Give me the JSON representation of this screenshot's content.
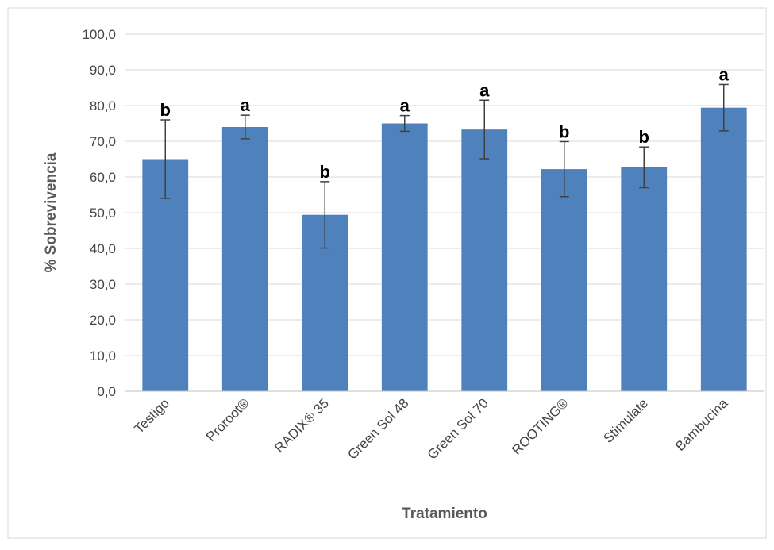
{
  "chart_data": {
    "type": "bar",
    "title": "",
    "xlabel": "Tratamiento",
    "ylabel": "% Sobrevivencia",
    "ylim": [
      0,
      100
    ],
    "yticks": [
      "0,0",
      "10,0",
      "20,0",
      "30,0",
      "40,0",
      "50,0",
      "60,0",
      "70,0",
      "80,0",
      "90,0",
      "100,0"
    ],
    "ytick_values": [
      0,
      10,
      20,
      30,
      40,
      50,
      60,
      70,
      80,
      90,
      100
    ],
    "grid": true,
    "legend": "none",
    "categories": [
      "Testigo",
      "Proroot®",
      "RADIX® 35",
      "Green Sol 48",
      "Green Sol 70",
      "ROOTING®",
      "Stimulate",
      "Bambucina"
    ],
    "values": [
      65.0,
      74.0,
      49.4,
      75.0,
      73.3,
      62.2,
      62.7,
      79.4
    ],
    "error_upper": [
      76.0,
      77.3,
      58.7,
      77.2,
      81.5,
      69.9,
      68.4,
      85.9
    ],
    "error_lower": [
      54.0,
      70.7,
      40.1,
      72.8,
      65.1,
      54.5,
      57.0,
      72.9
    ],
    "significance": [
      "b",
      "a",
      "b",
      "a",
      "a",
      "b",
      "b",
      "a"
    ],
    "bar_color": "#4f81bd",
    "error_color": "#404040",
    "grid_color": "#d9d9d9",
    "border_color": "#d9d9d9"
  }
}
